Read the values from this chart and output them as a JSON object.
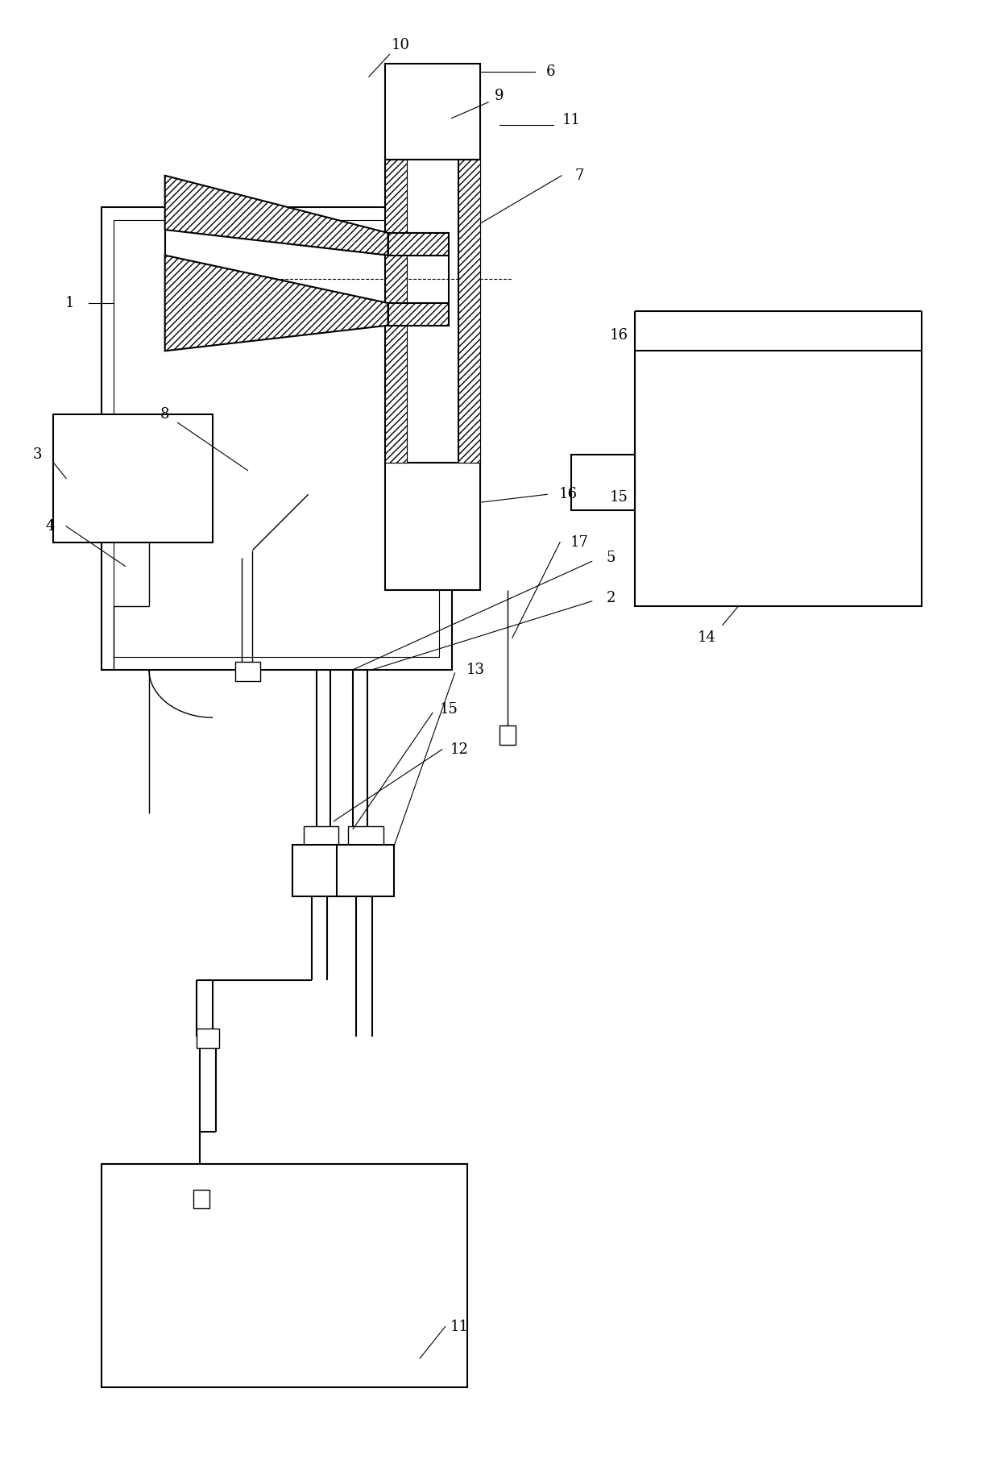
{
  "bg_color": "#ffffff",
  "lw": 1.5,
  "fig_width": 12.4,
  "fig_height": 18.1
}
